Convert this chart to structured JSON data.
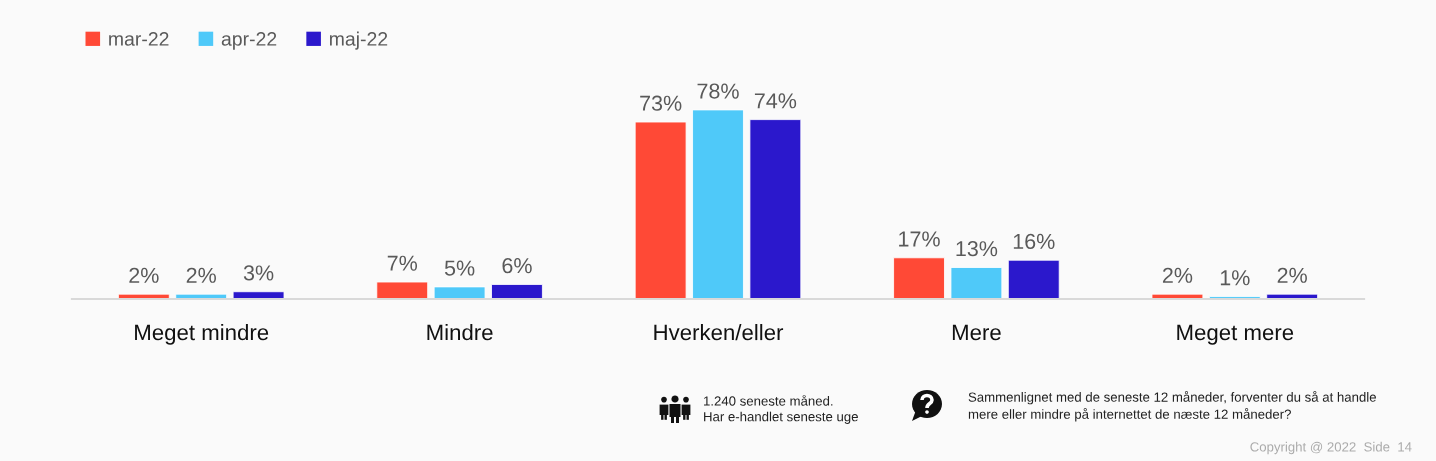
{
  "chart_data": {
    "type": "bar",
    "categories": [
      "Meget mindre",
      "Mindre",
      "Hverken/eller",
      "Mere",
      "Meget mere"
    ],
    "series": [
      {
        "name": "mar-22",
        "color": "#ff4936",
        "values": [
          2,
          7,
          73,
          17,
          2
        ],
        "value_labels": [
          "2%",
          "7%",
          "73%",
          "17%",
          "2%"
        ]
      },
      {
        "name": "apr-22",
        "color": "#4fc9f9",
        "values": [
          2,
          5,
          78,
          13,
          1
        ],
        "value_labels": [
          "2%",
          "5%",
          "78%",
          "13%",
          "1%"
        ]
      },
      {
        "name": "maj-22",
        "color": "#2b18cc",
        "values": [
          3,
          6,
          74,
          16,
          2
        ],
        "value_labels": [
          "3%",
          "6%",
          "74%",
          "16%",
          "2%"
        ]
      }
    ],
    "legend": "top left",
    "tick_labels": "x",
    "annotations": [
      "1.240 seneste måned.\nHar e-handlet seneste uge",
      "Sammenlignet med de seneste 12 måneder, forventer du så at handle\nmere eller mindre på internettet de næste 12 måneder?",
      "Copyright @ 2022  Side  14"
    ]
  }
}
